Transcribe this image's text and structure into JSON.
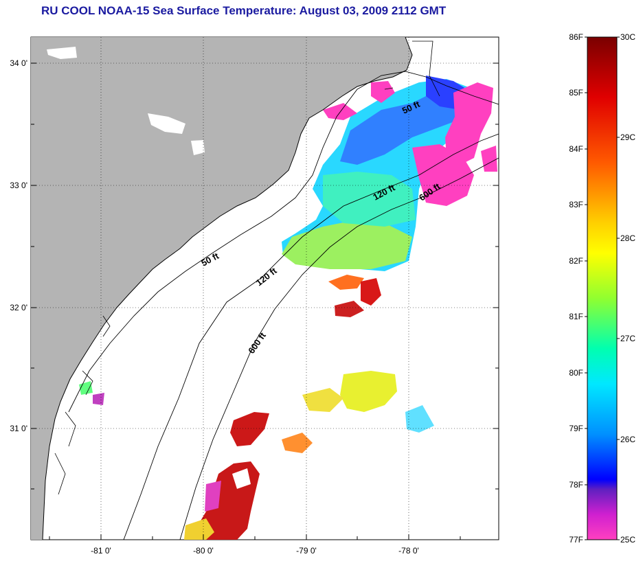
{
  "title": "RU COOL  NOAA-15  Sea Surface Temperature:  August 03, 2009 2112 GMT",
  "map": {
    "lat_labels": [
      "34 0'",
      "33 0'",
      "32 0'",
      "31 0'"
    ],
    "lon_labels": [
      "-81 0'",
      "-80 0'",
      "-79 0'",
      "-78 0'"
    ],
    "contour_labels": [
      "50 ft",
      "120 ft",
      "600 ft",
      "50 ft",
      "120 ft",
      "600 ft"
    ]
  },
  "colorbar": {
    "fahrenheit_labels": [
      "86F",
      "85F",
      "84F",
      "83F",
      "82F",
      "81F",
      "80F",
      "79F",
      "78F",
      "77F"
    ],
    "celsius_labels": [
      "30C",
      "29C",
      "28C",
      "27C",
      "26C",
      "25C"
    ],
    "colors": {
      "top": "#8b0000",
      "red": "#ff1010",
      "orange": "#ff8000",
      "yellow": "#ffff00",
      "green": "#80ff40",
      "cyan": "#00ffff",
      "blue": "#0040ff",
      "violet": "#8000c0",
      "magenta": "#ff40c0",
      "bottom": "#ff60c8"
    }
  },
  "colors": {
    "land": "#b4b4b4",
    "ocean": "#ffffff",
    "title": "#1a1aa0"
  }
}
